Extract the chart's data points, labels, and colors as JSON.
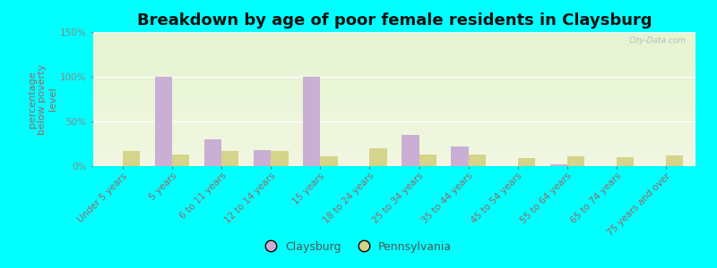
{
  "title": "Breakdown by age of poor female residents in Claysburg",
  "ylabel": "percentage\nbelow poverty\nlevel",
  "categories": [
    "Under 5 years",
    "5 years",
    "6 to 11 years",
    "12 to 14 years",
    "15 years",
    "18 to 24 years",
    "25 to 34 years",
    "35 to 44 years",
    "45 to 54 years",
    "55 to 64 years",
    "65 to 74 years",
    "75 years and over"
  ],
  "claysburg": [
    0,
    100,
    30,
    18,
    100,
    0,
    35,
    22,
    0,
    2,
    0,
    0
  ],
  "pennsylvania": [
    17,
    13,
    17,
    17,
    11,
    20,
    13,
    13,
    9,
    11,
    10,
    12
  ],
  "claysburg_color": "#c9afd4",
  "pennsylvania_color": "#d4d48a",
  "bar_width": 0.35,
  "ylim": [
    0,
    150
  ],
  "yticks": [
    0,
    50,
    100,
    150
  ],
  "ytick_labels": [
    "0%",
    "50%",
    "100%",
    "150%"
  ],
  "background_color": "#00ffff",
  "title_fontsize": 13,
  "axis_label_fontsize": 8,
  "tick_fontsize": 7.5,
  "watermark": "City-Data.com",
  "legend_labels": [
    "Claysburg",
    "Pennsylvania"
  ]
}
